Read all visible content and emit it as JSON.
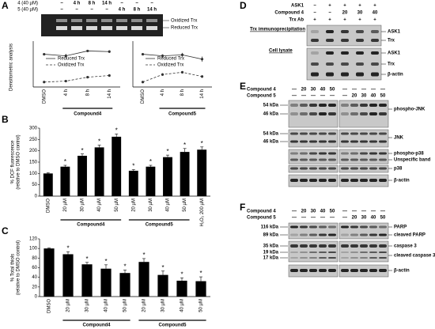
{
  "panel_letters": [
    "A",
    "B",
    "C",
    "D",
    "E",
    "F"
  ],
  "panel_a": {
    "blot_rows": [
      {
        "label": "4 (40 µM)",
        "lanes": [
          "−",
          "4 h",
          "8 h",
          "14 h",
          "−",
          "−",
          "−"
        ]
      },
      {
        "label": "5 (40 µM)",
        "lanes": [
          "−",
          "−",
          "−",
          "−",
          "4 h",
          "8 h",
          "14 h"
        ]
      }
    ],
    "band_labels": [
      "Oxidized Trx",
      "Reduced Trx"
    ],
    "y_label": "Densitometric analysis"
  },
  "chart_data": [
    {
      "type": "line",
      "group_label": "Compound4",
      "categories": [
        "DMSO",
        "4 h",
        "8 h",
        "14 h"
      ],
      "ylim": [
        0,
        1.4
      ],
      "series": [
        {
          "name": "Reduced Trx",
          "color": "#333333",
          "style": "solid",
          "values": [
            1.0,
            0.95,
            1.1,
            1.08
          ],
          "errors": [
            0.02,
            0.06,
            0.03,
            0.04
          ]
        },
        {
          "name": "Oxidized Trx",
          "color": "#333333",
          "style": "dashed",
          "values": [
            0.15,
            0.18,
            0.3,
            0.35
          ],
          "errors": [
            0.01,
            0.02,
            0.03,
            0.04
          ]
        }
      ]
    },
    {
      "type": "line",
      "group_label": "Compound5",
      "categories": [
        "DMSO",
        "4 h",
        "8 h",
        "14 h"
      ],
      "ylim": [
        0,
        1.4
      ],
      "series": [
        {
          "name": "Reduced Trx",
          "color": "#333333",
          "style": "solid",
          "values": [
            1.0,
            0.95,
            0.98,
            0.85
          ],
          "errors": [
            0.03,
            0.05,
            0.06,
            0.08
          ]
        },
        {
          "name": "Oxidized Trx",
          "color": "#333333",
          "style": "dashed",
          "values": [
            0.15,
            0.38,
            0.45,
            0.32
          ],
          "errors": [
            0.01,
            0.04,
            0.02,
            0.04
          ]
        }
      ]
    },
    {
      "type": "bar",
      "y_label": [
        "% DCF fluorescence",
        "(relative to DMSO control)"
      ],
      "color": "#000000",
      "categories": [
        "DMSO",
        "20 µM",
        "30 µM",
        "40 µM",
        "50 µM",
        "20 µM",
        "30 µM",
        "40 µM",
        "50 µM",
        "H₂O₂ 200 µM"
      ],
      "values": [
        100,
        130,
        178,
        215,
        262,
        112,
        130,
        172,
        195,
        205
      ],
      "errors": [
        3,
        6,
        8,
        10,
        12,
        5,
        6,
        9,
        15,
        12
      ],
      "markers": [
        null,
        "*",
        "*",
        "*",
        "*",
        "*",
        "*",
        "*",
        "*",
        "*"
      ],
      "groups": [
        "Compound4",
        "Compound5"
      ],
      "ylim": [
        0,
        300
      ],
      "yticks": [
        0,
        50,
        100,
        150,
        200,
        250,
        300
      ]
    },
    {
      "type": "bar",
      "y_label": [
        "% Total thiols",
        "(relative to DMSO control)"
      ],
      "color": "#000000",
      "categories": [
        "DMSO",
        "20 µM",
        "30 µM",
        "40 µM",
        "50 µM",
        "20 µM",
        "30 µM",
        "40 µM",
        "50 µM"
      ],
      "values": [
        100,
        88,
        67,
        58,
        49,
        72,
        45,
        33,
        32
      ],
      "errors": [
        1,
        5,
        4,
        8,
        6,
        7,
        8,
        6,
        9
      ],
      "markers": [
        null,
        "*",
        "*",
        "*",
        "*",
        "*",
        "*",
        "*",
        "*"
      ],
      "groups": [
        "Compound4",
        "Compound5"
      ],
      "ylim": [
        0,
        120
      ],
      "yticks": [
        0,
        20,
        40,
        60,
        80,
        100,
        120
      ]
    }
  ],
  "panel_d": {
    "header_rows": [
      {
        "label": "ASK1",
        "lanes": [
          "−",
          "+",
          "+",
          "+",
          "+"
        ]
      },
      {
        "label": "Compound 4",
        "lanes": [
          "−",
          "−",
          "20",
          "30",
          "40"
        ]
      },
      {
        "label": "Trx Ab",
        "lanes": [
          "+",
          "+",
          "+",
          "+",
          "+"
        ]
      }
    ],
    "sections": [
      "Trx immunoprecipitation",
      "Cell lysate"
    ],
    "band_labels": [
      "ASK1",
      "Trx",
      "ASK1",
      "Trx",
      "β-actin"
    ]
  },
  "panel_e": {
    "header_rows": [
      {
        "label": "Compound 4",
        "lanes": [
          "—",
          "20",
          "30",
          "40",
          "50",
          "—",
          "—",
          "—",
          "—",
          "—"
        ]
      },
      {
        "label": "Compound 5",
        "lanes": [
          "—",
          "—",
          "—",
          "—",
          "—",
          "—",
          "20",
          "30",
          "40",
          "50"
        ]
      }
    ],
    "sizes": [
      "54 kDa",
      "46 kDa",
      "54 kDa",
      "46 kDa"
    ],
    "band_labels": [
      "phospho-JNK",
      "JNK",
      "phospho-p38",
      "Unspecific band",
      "p38",
      "β-actin"
    ]
  },
  "panel_f": {
    "header_rows": [
      {
        "label": "Compound 4",
        "lanes": [
          "—",
          "20",
          "30",
          "40",
          "50",
          "—",
          "—",
          "—",
          "—",
          "—"
        ]
      },
      {
        "label": "Compound 5",
        "lanes": [
          "—",
          "—",
          "—",
          "—",
          "—",
          "—",
          "20",
          "30",
          "40",
          "50"
        ]
      }
    ],
    "sizes": [
      "116 kDa",
      "89 kDa",
      "35 kDa",
      "19 kDa",
      "17 kDa"
    ],
    "band_labels": [
      "PARP",
      "cleaved PARP",
      "caspase 3",
      "cleaved caspase 3",
      "β-actin"
    ]
  }
}
